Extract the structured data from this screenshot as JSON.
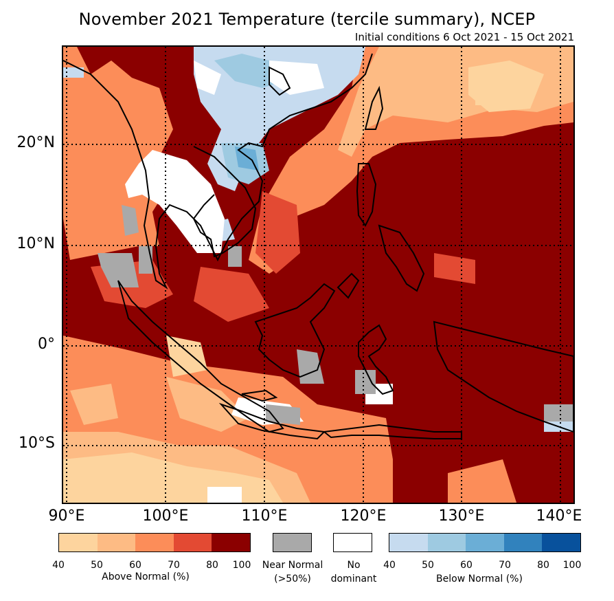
{
  "title": "November 2021 Temperature (tercile summary), NCEP",
  "subtitle": "Initial conditions 6 Oct 2021 - 15 Oct 2021",
  "map": {
    "region": "Southeast Asia",
    "lon_range": [
      90,
      142
    ],
    "lat_range": [
      -16,
      29
    ],
    "lat_ticks": [
      {
        "value": 20,
        "label": "20°N"
      },
      {
        "value": 10,
        "label": "10°N"
      },
      {
        "value": 0,
        "label": "0°"
      },
      {
        "value": -10,
        "label": "10°S"
      }
    ],
    "lon_ticks": [
      {
        "value": 90,
        "label": "90°E"
      },
      {
        "value": 100,
        "label": "100°E"
      },
      {
        "value": 110,
        "label": "110°E"
      },
      {
        "value": 120,
        "label": "120°E"
      },
      {
        "value": 130,
        "label": "130°E"
      },
      {
        "value": 140,
        "label": "140°E"
      }
    ],
    "gridlines": "dotted"
  },
  "legend": {
    "above_normal": {
      "label": "Above Normal (%)",
      "ticks": [
        "40",
        "50",
        "60",
        "70",
        "80",
        "100"
      ],
      "colors": [
        "#fdd49e",
        "#fdbb84",
        "#fc8d59",
        "#e34a33",
        "#8b0000"
      ]
    },
    "near_normal": {
      "label_line1": "Near Normal",
      "label_line2": "(>50%)",
      "color": "#a9a9a9"
    },
    "no_dominant": {
      "label_line1": "No",
      "label_line2": "dominant",
      "color": "#ffffff"
    },
    "below_normal": {
      "label": "Below Normal (%)",
      "ticks": [
        "40",
        "50",
        "60",
        "70",
        "80",
        "100"
      ],
      "colors": [
        "#c6dbef",
        "#9ecae1",
        "#6baed6",
        "#3182bd",
        "#08519c"
      ]
    }
  },
  "colors": {
    "above_40": "#fdd49e",
    "above_50": "#fdbb84",
    "above_60": "#fc8d59",
    "above_70": "#e34a33",
    "above_80": "#8b0000",
    "near_normal": "#a9a9a9",
    "no_dominant": "#ffffff",
    "below_40": "#c6dbef",
    "below_50": "#9ecae1",
    "below_60": "#6baed6"
  }
}
